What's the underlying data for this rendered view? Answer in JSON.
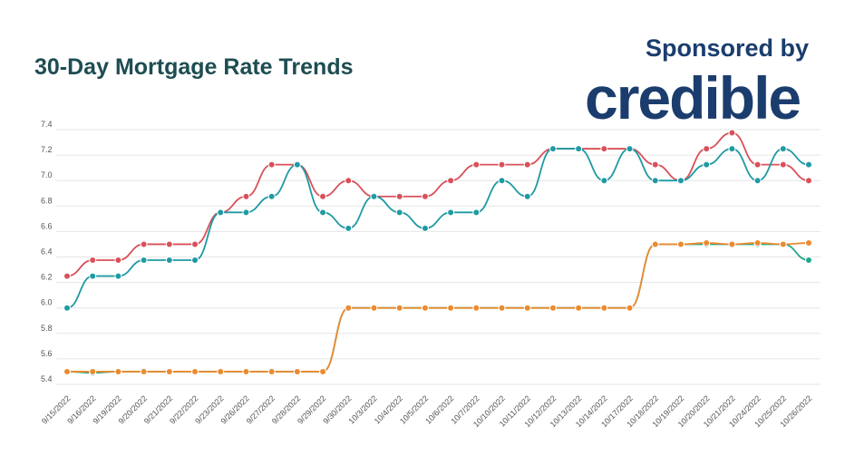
{
  "header": {
    "title": "30-Day Mortgage Rate Trends",
    "sponsor_label": "Sponsored by",
    "sponsor_logo": "credible"
  },
  "chart_data": {
    "type": "line",
    "title": "30-Day Mortgage Rate Trends",
    "xlabel": "",
    "ylabel": "",
    "ylim": [
      5.4,
      7.4
    ],
    "yticks": [
      "5.4",
      "5.6",
      "5.8",
      "6.0",
      "6.2",
      "6.4",
      "6.6",
      "6.8",
      "7.0",
      "7.2",
      "7.4"
    ],
    "grid": true,
    "legend": "none",
    "categories": [
      "9/15/2022",
      "9/16/2022",
      "9/19/2022",
      "9/20/2022",
      "9/21/2022",
      "9/22/2022",
      "9/23/2022",
      "9/26/2022",
      "9/27/2022",
      "9/28/2022",
      "9/29/2022",
      "9/30/2022",
      "10/3/2022",
      "10/4/2022",
      "10/5/2022",
      "10/6/2022",
      "10/7/2022",
      "10/10/2022",
      "10/11/2022",
      "10/12/2022",
      "10/13/2022",
      "10/14/2022",
      "10/17/2022",
      "10/18/2022",
      "10/19/2022",
      "10/20/2022",
      "10/21/2022",
      "10/24/2022",
      "10/25/2022",
      "10/26/2022"
    ],
    "series": [
      {
        "color": "#d9505a",
        "values": [
          6.25,
          6.375,
          6.375,
          6.5,
          6.5,
          6.5,
          6.75,
          6.875,
          7.125,
          7.125,
          6.875,
          7.0,
          6.875,
          6.875,
          6.875,
          7.0,
          7.125,
          7.125,
          7.125,
          7.25,
          7.25,
          7.25,
          7.25,
          7.125,
          7.0,
          7.25,
          7.375,
          7.125,
          7.125,
          7.0
        ]
      },
      {
        "color": "#1f9aa3",
        "values": [
          6.0,
          6.25,
          6.25,
          6.375,
          6.375,
          6.375,
          6.75,
          6.75,
          6.875,
          7.125,
          6.75,
          6.625,
          6.875,
          6.75,
          6.625,
          6.75,
          6.75,
          7.0,
          6.875,
          7.25,
          7.25,
          7.0,
          7.25,
          7.0,
          7.0,
          7.125,
          7.25,
          7.0,
          7.25,
          7.125
        ]
      },
      {
        "color": "#22a88a",
        "values": [
          5.5,
          5.49,
          5.5,
          5.5,
          5.5,
          5.5,
          5.5,
          5.5,
          5.5,
          5.5,
          5.5,
          6.0,
          6.0,
          6.0,
          6.0,
          6.0,
          6.0,
          6.0,
          6.0,
          6.0,
          6.0,
          6.0,
          6.0,
          6.5,
          6.5,
          6.5,
          6.5,
          6.5,
          6.5,
          6.375
        ]
      },
      {
        "color": "#ec8a2e",
        "values": [
          5.5,
          5.5,
          5.5,
          5.5,
          5.5,
          5.5,
          5.5,
          5.5,
          5.5,
          5.5,
          5.5,
          6.0,
          6.0,
          6.0,
          6.0,
          6.0,
          6.0,
          6.0,
          6.0,
          6.0,
          6.0,
          6.0,
          6.0,
          6.5,
          6.5,
          6.51,
          6.5,
          6.51,
          6.5,
          6.51
        ]
      }
    ]
  }
}
